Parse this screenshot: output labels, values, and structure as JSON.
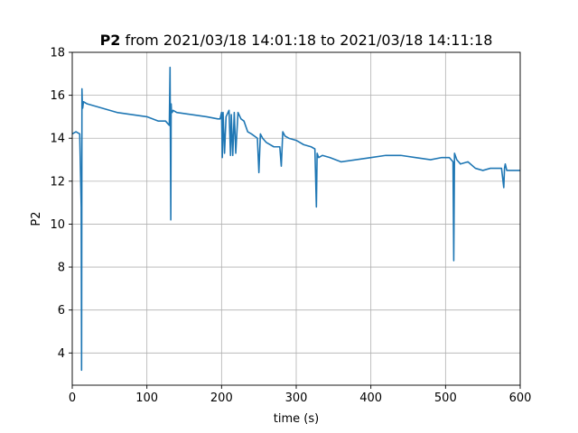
{
  "chart_data": {
    "type": "line",
    "title_bold": "P2",
    "title_rest": " from 2021/03/18 14:01:18 to 2021/03/18 14:11:18",
    "xlabel": "time (s)",
    "ylabel": "P2",
    "xlim": [
      0,
      600
    ],
    "ylim": [
      2.5,
      18
    ],
    "xticks": [
      0,
      100,
      200,
      300,
      400,
      500,
      600
    ],
    "yticks": [
      4,
      6,
      8,
      10,
      12,
      14,
      16,
      18
    ],
    "grid": true,
    "color": "#1f77b4",
    "series": [
      {
        "x": [
          0,
          5,
          10,
          12,
          12.5,
          13,
          13.5,
          14,
          15,
          20,
          40,
          60,
          80,
          100,
          115,
          125,
          130,
          131,
          132,
          132.5,
          133,
          134,
          135,
          140,
          160,
          180,
          195,
          198,
          200,
          201,
          202,
          204,
          206,
          210,
          212,
          213,
          215,
          217,
          219,
          222,
          226,
          230,
          235,
          240,
          248,
          250,
          252,
          255,
          260,
          270,
          278,
          280,
          282,
          285,
          290,
          300,
          310,
          320,
          325,
          327,
          328,
          330,
          335,
          345,
          360,
          380,
          400,
          420,
          440,
          460,
          480,
          495,
          505,
          510,
          511,
          512,
          513,
          515,
          520,
          530,
          540,
          550,
          560,
          570,
          575,
          578,
          579,
          580,
          582,
          590,
          600
        ],
        "y": [
          14.2,
          14.3,
          14.2,
          10.8,
          3.2,
          16.3,
          15.6,
          15.4,
          15.7,
          15.6,
          15.4,
          15.2,
          15.1,
          15.0,
          14.8,
          14.8,
          14.6,
          17.3,
          10.2,
          15.6,
          15.2,
          15.2,
          15.3,
          15.2,
          15.1,
          15.0,
          14.9,
          14.9,
          15.2,
          13.1,
          15.2,
          13.3,
          15.0,
          15.3,
          13.2,
          15.1,
          13.2,
          15.2,
          13.3,
          15.2,
          14.9,
          14.8,
          14.3,
          14.2,
          14.0,
          12.4,
          14.2,
          14.0,
          13.8,
          13.6,
          13.6,
          12.7,
          14.3,
          14.1,
          14.0,
          13.9,
          13.7,
          13.6,
          13.5,
          10.8,
          13.3,
          13.1,
          13.2,
          13.1,
          12.9,
          13.0,
          13.1,
          13.2,
          13.2,
          13.1,
          13.0,
          13.1,
          13.1,
          12.9,
          8.3,
          13.3,
          13.2,
          13.0,
          12.8,
          12.9,
          12.6,
          12.5,
          12.6,
          12.6,
          12.6,
          11.7,
          12.6,
          12.8,
          12.5,
          12.5,
          12.5
        ]
      }
    ]
  }
}
